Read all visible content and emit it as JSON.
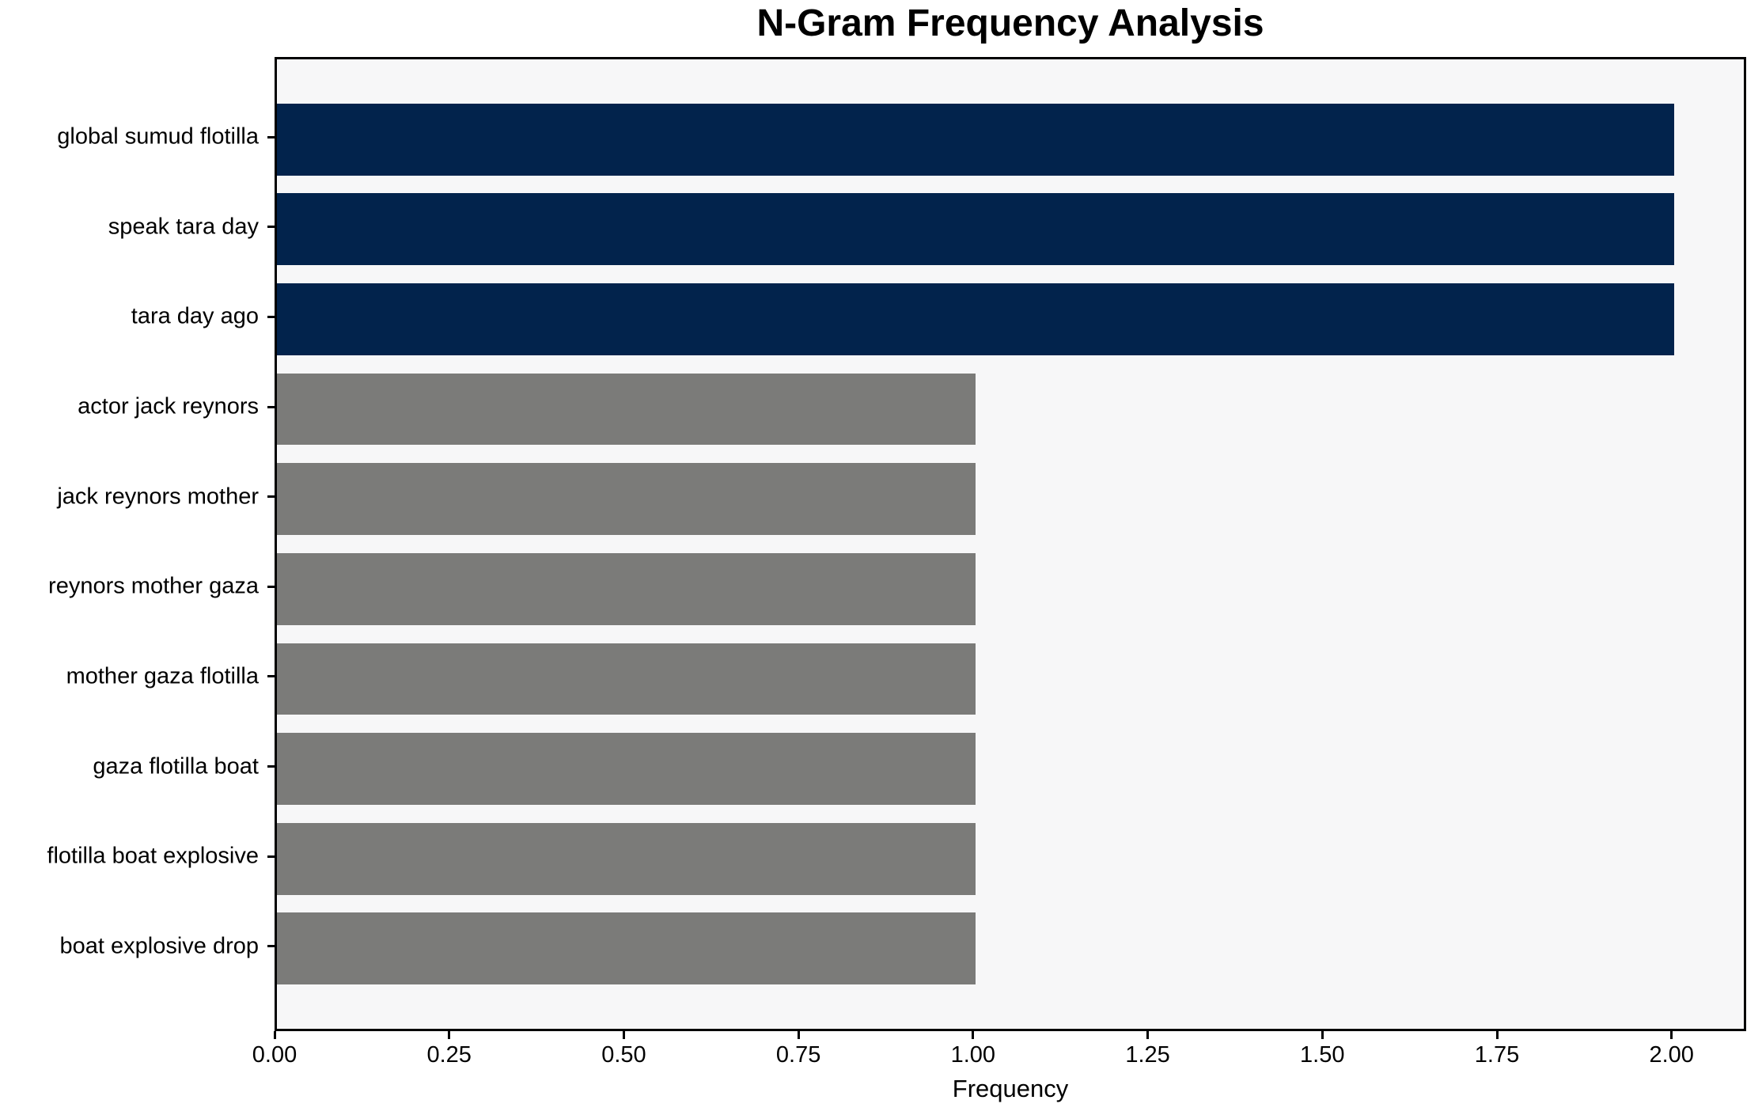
{
  "chart_data": {
    "type": "bar",
    "orientation": "horizontal",
    "title": "N-Gram Frequency Analysis",
    "xlabel": "Frequency",
    "ylabel": "",
    "categories": [
      "global sumud flotilla",
      "speak tara day",
      "tara day ago",
      "actor jack reynors",
      "jack reynors mother",
      "reynors mother gaza",
      "mother gaza flotilla",
      "gaza flotilla boat",
      "flotilla boat explosive",
      "boat explosive drop"
    ],
    "values": [
      2,
      2,
      2,
      1,
      1,
      1,
      1,
      1,
      1,
      1
    ],
    "bar_colors": [
      "#02234c",
      "#02234c",
      "#02234c",
      "#7b7b79",
      "#7b7b79",
      "#7b7b79",
      "#7b7b79",
      "#7b7b79",
      "#7b7b79",
      "#7b7b79"
    ],
    "xlim": [
      0,
      2.1
    ],
    "xticks": [
      0,
      0.25,
      0.5,
      0.75,
      1.0,
      1.25,
      1.5,
      1.75,
      2.0
    ],
    "xtick_labels": [
      "0.00",
      "0.25",
      "0.50",
      "0.75",
      "1.00",
      "1.25",
      "1.50",
      "1.75",
      "2.00"
    ],
    "grid": false,
    "legend": "none",
    "colors": {
      "highlight_bar": "#02234c",
      "default_bar": "#7b7b79",
      "plot_background": "#f7f7f8",
      "figure_background": "#ffffff",
      "spine": "#000000",
      "text": "#000000"
    }
  }
}
